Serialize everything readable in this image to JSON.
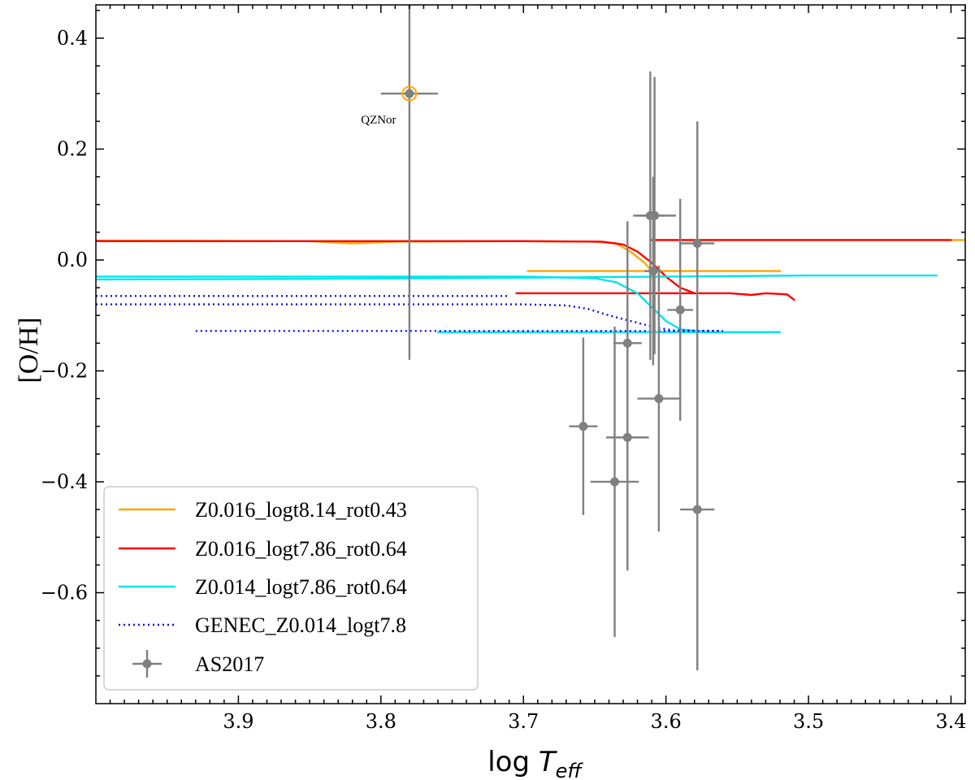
{
  "chart_data": {
    "type": "line",
    "xlabel_prefix": "log ",
    "xlabel_symbol": "T",
    "xlabel_sub": "eff",
    "ylabel": "[O/H]",
    "xlim": [
      4.0,
      3.39
    ],
    "ylim": [
      -0.8,
      0.46
    ],
    "x_inverted": true,
    "x_ticks": [
      3.9,
      3.8,
      3.7,
      3.6,
      3.5,
      3.4
    ],
    "x_tick_labels": [
      "3.9",
      "3.8",
      "3.7",
      "3.6",
      "3.5",
      "3.4"
    ],
    "y_ticks": [
      0.4,
      0.2,
      0.0,
      -0.2,
      -0.4,
      -0.6
    ],
    "y_tick_labels": [
      "0.4",
      "0.2",
      "0.0",
      "−0.2",
      "−0.4",
      "−0.6"
    ],
    "grid": false,
    "legend_position": "lower-left",
    "series": [
      {
        "name": "Z0.016_logt8.14_rot0.43",
        "color": "#FFA500",
        "style": "solid",
        "segments": [
          [
            [
              4.0,
              0.035
            ],
            [
              3.85,
              0.034
            ],
            [
              3.82,
              0.03
            ],
            [
              3.79,
              0.033
            ],
            [
              3.7,
              0.034
            ],
            [
              3.65,
              0.033
            ],
            [
              3.635,
              0.03
            ],
            [
              3.625,
              0.015
            ],
            [
              3.615,
              -0.005
            ],
            [
              3.61,
              -0.02
            ],
            [
              3.58,
              -0.02
            ],
            [
              3.52,
              -0.02
            ]
          ],
          [
            [
              3.61,
              0.036
            ],
            [
              3.5,
              0.036
            ],
            [
              3.39,
              0.036
            ]
          ],
          [
            [
              3.697,
              -0.02
            ],
            [
              3.61,
              -0.02
            ]
          ]
        ]
      },
      {
        "name": "Z0.016_logt7.86_rot0.64",
        "color": "#FF0000",
        "style": "solid",
        "segments": [
          [
            [
              4.0,
              0.034
            ],
            [
              3.8,
              0.034
            ],
            [
              3.7,
              0.034
            ],
            [
              3.645,
              0.033
            ],
            [
              3.63,
              0.028
            ],
            [
              3.62,
              0.015
            ],
            [
              3.61,
              -0.005
            ],
            [
              3.6,
              -0.03
            ],
            [
              3.59,
              -0.05
            ],
            [
              3.58,
              -0.06
            ],
            [
              3.555,
              -0.06
            ],
            [
              3.54,
              -0.063
            ],
            [
              3.53,
              -0.06
            ],
            [
              3.515,
              -0.062
            ],
            [
              3.51,
              -0.072
            ]
          ],
          [
            [
              3.705,
              -0.06
            ],
            [
              3.58,
              -0.06
            ]
          ],
          [
            [
              3.61,
              0.036
            ],
            [
              3.5,
              0.036
            ],
            [
              3.4,
              0.036
            ]
          ]
        ]
      },
      {
        "name": "Z0.014_logt7.86_rot0.64",
        "color": "#00E5EE",
        "style": "solid",
        "segments": [
          [
            [
              4.0,
              -0.03
            ],
            [
              3.8,
              -0.03
            ],
            [
              3.7,
              -0.03
            ],
            [
              3.65,
              -0.033
            ],
            [
              3.635,
              -0.04
            ],
            [
              3.62,
              -0.06
            ],
            [
              3.61,
              -0.085
            ],
            [
              3.6,
              -0.11
            ],
            [
              3.59,
              -0.125
            ],
            [
              3.57,
              -0.13
            ],
            [
              3.52,
              -0.13
            ]
          ],
          [
            [
              4.0,
              -0.035
            ],
            [
              3.85,
              -0.034
            ],
            [
              3.7,
              -0.032
            ],
            [
              3.6,
              -0.03
            ],
            [
              3.5,
              -0.028
            ],
            [
              3.41,
              -0.028
            ]
          ],
          [
            [
              3.76,
              -0.13
            ],
            [
              3.62,
              -0.13
            ],
            [
              3.52,
              -0.13
            ]
          ]
        ]
      },
      {
        "name": "GENEC_Z0.014_logt7.8",
        "color": "#1010E0",
        "style": "dotted",
        "segments": [
          [
            [
              4.0,
              -0.065
            ],
            [
              3.71,
              -0.065
            ]
          ],
          [
            [
              4.0,
              -0.08
            ],
            [
              3.7,
              -0.08
            ],
            [
              3.67,
              -0.082
            ],
            [
              3.655,
              -0.088
            ],
            [
              3.64,
              -0.1
            ],
            [
              3.625,
              -0.11
            ],
            [
              3.61,
              -0.12
            ],
            [
              3.595,
              -0.127
            ],
            [
              3.56,
              -0.128
            ]
          ],
          [
            [
              3.93,
              -0.128
            ],
            [
              3.56,
              -0.128
            ]
          ]
        ]
      }
    ],
    "points": {
      "name": "AS2017",
      "color": "#808080",
      "data": [
        {
          "x": 3.78,
          "y": 0.3,
          "xerr": 0.02,
          "yerr": 0.48
        },
        {
          "x": 3.658,
          "y": -0.3,
          "xerr": 0.01,
          "yerr": 0.16
        },
        {
          "x": 3.636,
          "y": -0.4,
          "xerr": 0.017,
          "yerr": 0.28
        },
        {
          "x": 3.627,
          "y": -0.15,
          "xerr": 0.01,
          "yerr": 0.22
        },
        {
          "x": 3.627,
          "y": -0.32,
          "xerr": 0.015,
          "yerr": 0.24
        },
        {
          "x": 3.611,
          "y": 0.08,
          "xerr": 0.01,
          "yerr": 0.26
        },
        {
          "x": 3.608,
          "y": 0.08,
          "xerr": 0.015,
          "yerr": 0.25
        },
        {
          "x": 3.609,
          "y": -0.02,
          "xerr": 0.006,
          "yerr": 0.17
        },
        {
          "x": 3.605,
          "y": -0.25,
          "xerr": 0.015,
          "yerr": 0.24
        },
        {
          "x": 3.59,
          "y": -0.09,
          "xerr": 0.009,
          "yerr": 0.2
        },
        {
          "x": 3.578,
          "y": 0.03,
          "xerr": 0.012,
          "yerr": 0.22
        },
        {
          "x": 3.578,
          "y": -0.45,
          "xerr": 0.012,
          "yerr": 0.29
        }
      ]
    },
    "annotations": [
      {
        "text": "QZNor",
        "x": 3.78,
        "y": 0.3,
        "highlight_color": "#FFA500"
      }
    ]
  }
}
